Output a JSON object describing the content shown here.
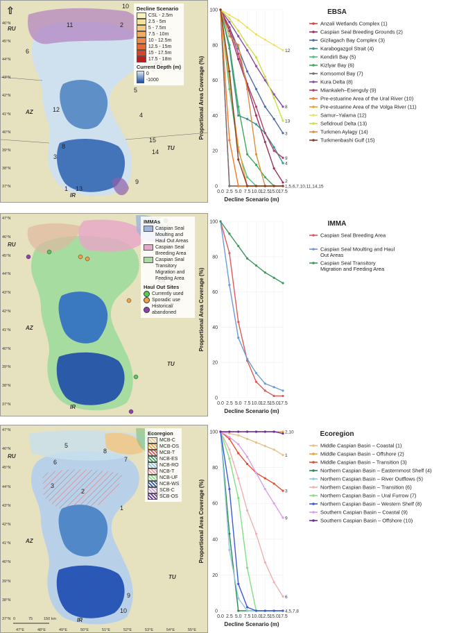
{
  "map1": {
    "legend_title": "Decline Scenario",
    "legend_items": [
      {
        "label": "CSL - 2.5m",
        "color": "#f7f4b4"
      },
      {
        "label": "2.5 - 5m",
        "color": "#f5e29a"
      },
      {
        "label": "5 - 7.5m",
        "color": "#f2c983"
      },
      {
        "label": "7.5 - 10m",
        "color": "#f0aa63"
      },
      {
        "label": "10 - 12.5m",
        "color": "#ec8a45"
      },
      {
        "label": "12.5 - 15m",
        "color": "#e26a33"
      },
      {
        "label": "15 - 17.5m",
        "color": "#d4452a"
      },
      {
        "label": "17.5 - 18m",
        "color": "#b82020"
      }
    ],
    "depth_title": "Current Depth (m)",
    "depth_values": [
      "0",
      "-1000"
    ],
    "regions": [
      "RU",
      "KA",
      "AZ",
      "TU",
      "IR"
    ],
    "north": "N",
    "numbers": [
      "10",
      "2",
      "7",
      "11",
      "6",
      "5",
      "12",
      "4",
      "15",
      "14",
      "8",
      "3",
      "9",
      "1",
      "13"
    ],
    "lat_ticks": [
      "46°N",
      "45°N",
      "44°N",
      "43°N",
      "42°N",
      "41°N",
      "40°N",
      "39°N",
      "38°N",
      "37°N"
    ]
  },
  "map2": {
    "legend_title": "IMMAs",
    "legend_items": [
      {
        "label": "Caspian Seal Moulting and Haul Out Areas",
        "color": "#9fb4d8"
      },
      {
        "label": "Caspian Seal Breeding Area",
        "color": "#e8a6c8"
      },
      {
        "label": "Caspian Seal Transitory Migration and Feeding Area",
        "color": "#a8dca0"
      }
    ],
    "haul_title": "Haul Out Sites",
    "haul_items": [
      {
        "label": "Currently used",
        "color": "#5cc65c"
      },
      {
        "label": "Sporadic use",
        "color": "#f0a040"
      },
      {
        "label": "Historical/ abandoned",
        "color": "#9040b0"
      }
    ],
    "regions": [
      "RU",
      "KA",
      "AZ",
      "TU",
      "IR"
    ],
    "lat_ticks": [
      "47°N",
      "46°N",
      "45°N",
      "44°N",
      "43°N",
      "42°N",
      "41°N",
      "40°N",
      "39°N",
      "38°N",
      "37°N"
    ]
  },
  "map3": {
    "legend_title": "Ecoregion",
    "legend_items": [
      {
        "label": "MCB-C",
        "color": "#f0c890"
      },
      {
        "label": "MCB-OS",
        "color": "#f0a040"
      },
      {
        "label": "MCB-T",
        "color": "#e05050"
      },
      {
        "label": "NCB-ES",
        "color": "#40a060"
      },
      {
        "label": "NCB-RO",
        "color": "#90c8e0"
      },
      {
        "label": "NCB-T",
        "color": "#f0a0a0"
      },
      {
        "label": "NCB-UF",
        "color": "#80e080"
      },
      {
        "label": "NCB-WS",
        "color": "#3050a0"
      },
      {
        "label": "SCB-C",
        "color": "#d0a0e0"
      },
      {
        "label": "SCB-OS",
        "color": "#6030a0"
      }
    ],
    "regions": [
      "RU",
      "KA",
      "AZ",
      "TU",
      "IR"
    ],
    "numbers": [
      "5",
      "4",
      "8",
      "7",
      "6",
      "3",
      "2",
      "1",
      "9",
      "10"
    ],
    "lat_ticks": [
      "47°N",
      "46°N",
      "45°N",
      "44°N",
      "43°N",
      "42°N",
      "41°N",
      "40°N",
      "39°N",
      "38°N",
      "37°N"
    ],
    "lon_ticks": [
      "47°E",
      "48°E",
      "49°E",
      "50°E",
      "51°E",
      "52°E",
      "53°E",
      "54°E",
      "55°E"
    ],
    "scale": [
      "0",
      "75",
      "150 km"
    ]
  },
  "chart_data": [
    {
      "type": "line",
      "title": "EBSA",
      "xlabel": "Decline Scenario (m)",
      "ylabel": "Proportional Area Coverage (%)",
      "x": [
        0,
        2.5,
        5,
        7.5,
        10,
        12.5,
        15,
        17.5
      ],
      "xticks": [
        "0.0",
        "2.5",
        "5.0",
        "7.5",
        "10.0",
        "12.5",
        "15.0",
        "17.5"
      ],
      "ylim": [
        0,
        100
      ],
      "yticks": [
        "0",
        "20",
        "40",
        "60",
        "80",
        "100"
      ],
      "end_labels": [
        {
          "text": "12",
          "y": 77
        },
        {
          "text": "8",
          "y": 45
        },
        {
          "text": "13",
          "y": 37
        },
        {
          "text": "3",
          "y": 30
        },
        {
          "text": "9",
          "y": 16
        },
        {
          "text": "4",
          "y": 13
        },
        {
          "text": "2",
          "y": 3
        },
        {
          "text": "1,5,6,7,10,11,14,15",
          "y": 0
        }
      ],
      "series": [
        {
          "name": "Anzali Wetlands Complex (1)",
          "color": "#e0403a",
          "values": [
            100,
            0,
            0,
            0,
            0,
            0,
            0,
            0
          ]
        },
        {
          "name": "Caspian Seal Breeding Grounds (2)",
          "color": "#9c3060",
          "values": [
            100,
            88,
            72,
            57,
            40,
            25,
            10,
            2
          ]
        },
        {
          "name": "Gizilagach Bay Complex (3)",
          "color": "#4a6aa8",
          "values": [
            100,
            90,
            78,
            65,
            55,
            45,
            38,
            30
          ]
        },
        {
          "name": "Karabogazgol Strait (4)",
          "color": "#3a9090",
          "values": [
            100,
            78,
            40,
            38,
            35,
            30,
            22,
            13
          ]
        },
        {
          "name": "Kendirli Bay (5)",
          "color": "#50c080",
          "values": [
            100,
            55,
            20,
            5,
            0,
            0,
            0,
            0
          ]
        },
        {
          "name": "Kizlyar Bay (6)",
          "color": "#3aaa5a",
          "values": [
            100,
            80,
            45,
            18,
            12,
            5,
            0,
            0
          ]
        },
        {
          "name": "Komsomol Bay (7)",
          "color": "#707070",
          "values": [
            100,
            0,
            0,
            0,
            0,
            0,
            0,
            0
          ]
        },
        {
          "name": "Kura Delta (8)",
          "color": "#8a4aa8",
          "values": [
            100,
            93,
            85,
            77,
            68,
            60,
            52,
            45
          ]
        },
        {
          "name": "Miankaleh–Esenguly (9)",
          "color": "#b0406a",
          "values": [
            100,
            90,
            75,
            58,
            45,
            30,
            20,
            16
          ]
        },
        {
          "name": "Pre-estuarine Area of the Ural River (10)",
          "color": "#f07a2a",
          "values": [
            100,
            26,
            0,
            0,
            0,
            0,
            0,
            0
          ]
        },
        {
          "name": "Pre-estuarine Area of the Volga River (11)",
          "color": "#f0a030",
          "values": [
            100,
            60,
            22,
            0,
            0,
            0,
            0,
            0
          ]
        },
        {
          "name": "Samur–Yalama (12)",
          "color": "#f0e060",
          "values": [
            100,
            97,
            94,
            90,
            86,
            83,
            80,
            77
          ]
        },
        {
          "name": "Sefidroud Delta (13)",
          "color": "#c8e040",
          "values": [
            100,
            95,
            88,
            80,
            73,
            62,
            50,
            37
          ]
        },
        {
          "name": "Turkmen Aylagy (14)",
          "color": "#d89040",
          "values": [
            100,
            85,
            80,
            55,
            18,
            0,
            0,
            0
          ]
        },
        {
          "name": "Turkmenbashi Gulf (15)",
          "color": "#8a3a2a",
          "values": [
            100,
            65,
            15,
            0,
            0,
            0,
            0,
            0
          ]
        }
      ]
    },
    {
      "type": "line",
      "title": "IMMA",
      "xlabel": "Decline Scenario (m)",
      "ylabel": "Proportional Area Coverage (%)",
      "x": [
        0,
        2.5,
        5,
        7.5,
        10,
        12.5,
        15,
        17.5
      ],
      "xticks": [
        "0.0",
        "2.5",
        "5.0",
        "7.5",
        "10.0",
        "12.5",
        "15.0",
        "17.5"
      ],
      "ylim": [
        0,
        100
      ],
      "yticks": [
        "0",
        "20",
        "40",
        "60",
        "80",
        "100"
      ],
      "series": [
        {
          "name": "Caspian Seal Breeding Area",
          "color": "#e05858",
          "values": [
            100,
            82,
            43,
            21,
            9,
            4,
            1,
            1
          ]
        },
        {
          "name": "Caspian Seal Moulting and Haul Out Areas",
          "color": "#6a9ad8",
          "values": [
            100,
            64,
            34,
            22,
            14,
            8,
            6,
            4
          ]
        },
        {
          "name": "Caspian Seal Transitory Migration and Feeding Area",
          "color": "#3a9a5a",
          "values": [
            100,
            93,
            86,
            79,
            75,
            71,
            68,
            65
          ]
        }
      ]
    },
    {
      "type": "line",
      "title": "Ecoregion",
      "xlabel": "Decline Scenario (m)",
      "ylabel": "Proportional Area Coverage (%)",
      "x": [
        0,
        2.5,
        5,
        7.5,
        10,
        12.5,
        15,
        17.5
      ],
      "xticks": [
        "0.0",
        "2.5",
        "5.0",
        "7.5",
        "10.0",
        "12.5",
        "15.0",
        "17.5"
      ],
      "ylim": [
        0,
        100
      ],
      "yticks": [
        "0",
        "20",
        "40",
        "60",
        "80",
        "100"
      ],
      "end_labels": [
        {
          "text": "2,10",
          "y": 100
        },
        {
          "text": "1",
          "y": 87
        },
        {
          "text": "3",
          "y": 67
        },
        {
          "text": "9",
          "y": 52
        },
        {
          "text": "6",
          "y": 8
        },
        {
          "text": "4,5,7,8",
          "y": 0
        }
      ],
      "series": [
        {
          "name": "Middle Caspian Basin – Coastal (1)",
          "color": "#e8c088",
          "values": [
            100,
            99,
            98,
            96,
            94,
            92,
            90,
            87
          ]
        },
        {
          "name": "Middle Caspian Basin – Offshore (2)",
          "color": "#f0a040",
          "values": [
            100,
            100,
            100,
            100,
            100,
            100,
            100,
            100
          ]
        },
        {
          "name": "Middle Caspian Basin – Transition (3)",
          "color": "#e84a2a",
          "values": [
            100,
            96,
            88,
            82,
            77,
            74,
            71,
            67
          ]
        },
        {
          "name": "Northern Caspian Basin – Easternmost Shelf (4)",
          "color": "#2a8a4a",
          "values": [
            100,
            43,
            0,
            0,
            0,
            0,
            0,
            0
          ]
        },
        {
          "name": "Northern Caspian Basin – River Outflows (5)",
          "color": "#90c8e0",
          "values": [
            100,
            34,
            7,
            0,
            0,
            0,
            0,
            0
          ]
        },
        {
          "name": "Northern Caspian Basin – Transition (6)",
          "color": "#f0b0b0",
          "values": [
            100,
            90,
            74,
            56,
            43,
            27,
            16,
            8
          ]
        },
        {
          "name": "Northern Caspian Basin – Ural Furrow (7)",
          "color": "#80e080",
          "values": [
            100,
            85,
            63,
            24,
            0,
            0,
            0,
            0
          ]
        },
        {
          "name": "Northern Caspian Basin – Western Shelf (8)",
          "color": "#3a5ad8",
          "values": [
            100,
            68,
            15,
            2,
            0,
            0,
            0,
            0
          ]
        },
        {
          "name": "Southern Caspian Basin – Coastal (9)",
          "color": "#d8a0e8",
          "values": [
            100,
            97,
            93,
            86,
            77,
            68,
            60,
            52
          ]
        },
        {
          "name": "Southern Caspian Basin – Offshore (10)",
          "color": "#6a2aa0",
          "values": [
            100,
            100,
            100,
            100,
            100,
            100,
            100,
            99
          ]
        }
      ]
    }
  ]
}
